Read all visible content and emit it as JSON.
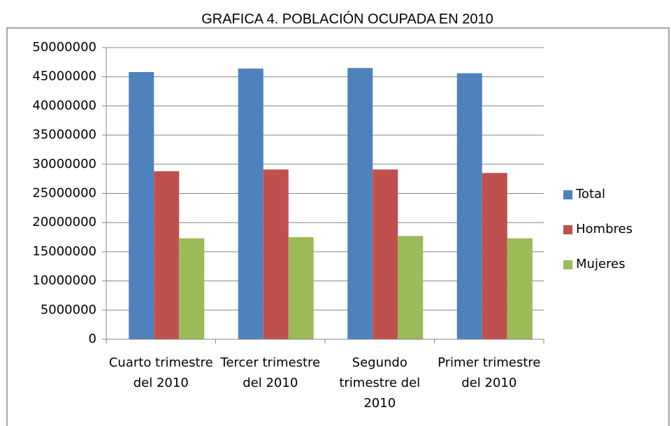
{
  "chart_data": {
    "type": "bar",
    "title": "GRAFICA 4. POBLACIÓN OCUPADA EN 2010",
    "categories": [
      "Cuarto trimestre del 2010",
      "Tercer trimestre del 2010",
      "Segundo trimestre del 2010",
      "Primer trimestre del 2010"
    ],
    "series": [
      {
        "name": "Total",
        "color": "#4f81bd",
        "values": [
          45800000,
          46400000,
          46500000,
          45600000
        ]
      },
      {
        "name": "Hombres",
        "color": "#c0504d",
        "values": [
          28800000,
          29100000,
          29100000,
          28500000
        ]
      },
      {
        "name": "Mujeres",
        "color": "#9bbb59",
        "values": [
          17300000,
          17500000,
          17700000,
          17300000
        ]
      }
    ],
    "ylim": [
      0,
      50000000
    ],
    "yticks": [
      0,
      5000000,
      10000000,
      15000000,
      20000000,
      25000000,
      30000000,
      35000000,
      40000000,
      45000000,
      50000000
    ],
    "grid": true,
    "legend": "right"
  }
}
